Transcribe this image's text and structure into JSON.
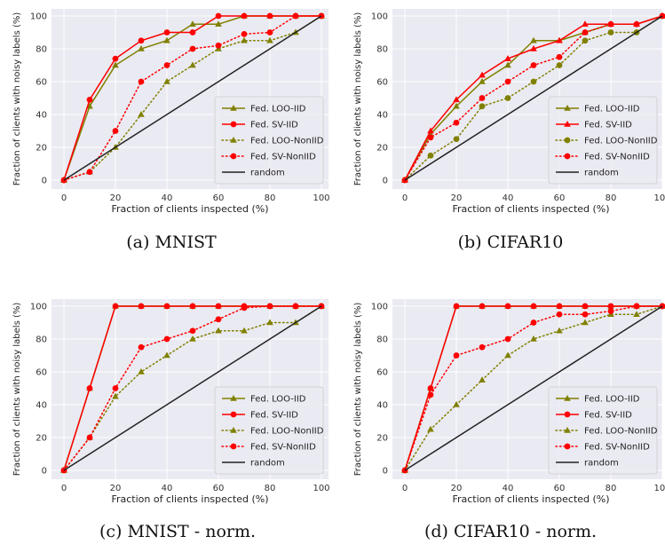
{
  "captions": [
    "(a) MNIST",
    "(b) CIFAR10",
    "(c) MNIST - norm.",
    "(d) CIFAR10 - norm."
  ],
  "chart_data": [
    {
      "type": "line",
      "xlabel": "Fraction of clients inspected (%)",
      "ylabel": "Fraction of clients with noisy labels (%)",
      "xlim": [
        0,
        100
      ],
      "ylim": [
        0,
        100
      ],
      "xticks": [
        0,
        20,
        40,
        60,
        80,
        100
      ],
      "yticks": [
        0,
        20,
        40,
        60,
        80,
        100
      ],
      "grid": true,
      "legend_position": "lower-right",
      "x": [
        0,
        10,
        20,
        30,
        40,
        50,
        60,
        70,
        80,
        90,
        100
      ],
      "series": [
        {
          "name": "Fed. LOO-IID",
          "color": "#808000",
          "style": "solid",
          "marker": "triangle",
          "values": [
            0,
            45,
            70,
            80,
            85,
            95,
            95,
            100,
            100,
            100,
            100
          ]
        },
        {
          "name": "Fed. SV-IID",
          "color": "#ff0000",
          "style": "solid",
          "marker": "circle",
          "values": [
            0,
            49,
            74,
            85,
            90,
            90,
            100,
            100,
            100,
            100,
            100
          ]
        },
        {
          "name": "Fed. LOO-NonIID",
          "color": "#808000",
          "style": "dotted",
          "marker": "triangle",
          "values": [
            0,
            5,
            20,
            40,
            60,
            70,
            80,
            85,
            85,
            90,
            100
          ]
        },
        {
          "name": "Fed. SV-NonIID",
          "color": "#ff0000",
          "style": "dotted",
          "marker": "circle",
          "values": [
            0,
            5,
            30,
            60,
            70,
            80,
            82,
            89,
            90,
            100,
            100
          ]
        },
        {
          "name": "random",
          "color": "#222222",
          "style": "solid",
          "marker": "none",
          "values": [
            0,
            10,
            20,
            30,
            40,
            50,
            60,
            70,
            80,
            90,
            100
          ]
        }
      ]
    },
    {
      "type": "line",
      "xlabel": "Fraction of clients inspected (%)",
      "ylabel": "Fraction of clients with noisy labels (%)",
      "xlim": [
        0,
        100
      ],
      "ylim": [
        0,
        100
      ],
      "xticks": [
        0,
        20,
        40,
        60,
        80,
        100
      ],
      "yticks": [
        0,
        20,
        40,
        60,
        80,
        100
      ],
      "grid": true,
      "legend_position": "lower-right",
      "x": [
        0,
        10,
        20,
        30,
        40,
        50,
        60,
        70,
        80,
        90,
        100
      ],
      "series": [
        {
          "name": "Fed. LOO-IID",
          "color": "#808000",
          "style": "solid",
          "marker": "triangle",
          "values": [
            0,
            28,
            45,
            60,
            70,
            85,
            85,
            90,
            95,
            95,
            100
          ]
        },
        {
          "name": "Fed. SV-IID",
          "color": "#ff0000",
          "style": "solid",
          "marker": "triangle",
          "values": [
            0,
            30,
            49,
            64,
            74,
            80,
            85,
            95,
            95,
            95,
            100
          ]
        },
        {
          "name": "Fed. LOO-NonIID",
          "color": "#808000",
          "style": "dotted",
          "marker": "circle",
          "values": [
            0,
            15,
            25,
            45,
            50,
            60,
            70,
            85,
            90,
            90,
            100
          ]
        },
        {
          "name": "Fed. SV-NonIID",
          "color": "#ff0000",
          "style": "dotted",
          "marker": "circle",
          "values": [
            0,
            26,
            35,
            50,
            60,
            70,
            75,
            90,
            95,
            95,
            100
          ]
        },
        {
          "name": "random",
          "color": "#222222",
          "style": "solid",
          "marker": "none",
          "values": [
            0,
            10,
            20,
            30,
            40,
            50,
            60,
            70,
            80,
            90,
            100
          ]
        }
      ]
    },
    {
      "type": "line",
      "xlabel": "Fraction of clients inspected (%)",
      "ylabel": "Fraction of clients with noisy labels (%)",
      "xlim": [
        0,
        100
      ],
      "ylim": [
        0,
        100
      ],
      "xticks": [
        0,
        20,
        40,
        60,
        80,
        100
      ],
      "yticks": [
        0,
        20,
        40,
        60,
        80,
        100
      ],
      "grid": true,
      "legend_position": "lower-right",
      "x": [
        0,
        10,
        20,
        30,
        40,
        50,
        60,
        70,
        80,
        90,
        100
      ],
      "series": [
        {
          "name": "Fed. LOO-IID",
          "color": "#808000",
          "style": "solid",
          "marker": "triangle",
          "values": [
            0,
            50,
            100,
            100,
            100,
            100,
            100,
            100,
            100,
            100,
            100
          ]
        },
        {
          "name": "Fed. SV-IID",
          "color": "#ff0000",
          "style": "solid",
          "marker": "circle",
          "values": [
            0,
            50,
            100,
            100,
            100,
            100,
            100,
            100,
            100,
            100,
            100
          ]
        },
        {
          "name": "Fed. LOO-NonIID",
          "color": "#808000",
          "style": "dotted",
          "marker": "triangle",
          "values": [
            0,
            20,
            45,
            60,
            70,
            80,
            85,
            85,
            90,
            90,
            100
          ]
        },
        {
          "name": "Fed. SV-NonIID",
          "color": "#ff0000",
          "style": "dotted",
          "marker": "circle",
          "values": [
            0,
            20,
            50,
            75,
            80,
            85,
            92,
            99,
            100,
            100,
            100
          ]
        },
        {
          "name": "random",
          "color": "#222222",
          "style": "solid",
          "marker": "none",
          "values": [
            0,
            10,
            20,
            30,
            40,
            50,
            60,
            70,
            80,
            90,
            100
          ]
        }
      ]
    },
    {
      "type": "line",
      "xlabel": "Fraction of clients inspected (%)",
      "ylabel": "Fraction of clients with noisy labels (%)",
      "xlim": [
        0,
        100
      ],
      "ylim": [
        0,
        100
      ],
      "xticks": [
        0,
        20,
        40,
        60,
        80,
        100
      ],
      "yticks": [
        0,
        20,
        40,
        60,
        80,
        100
      ],
      "grid": true,
      "legend_position": "lower-right",
      "x": [
        0,
        10,
        20,
        30,
        40,
        50,
        60,
        70,
        80,
        90,
        100
      ],
      "series": [
        {
          "name": "Fed. LOO-IID",
          "color": "#808000",
          "style": "solid",
          "marker": "triangle",
          "values": [
            0,
            50,
            100,
            100,
            100,
            100,
            100,
            100,
            100,
            100,
            100
          ]
        },
        {
          "name": "Fed. SV-IID",
          "color": "#ff0000",
          "style": "solid",
          "marker": "circle",
          "values": [
            0,
            50,
            100,
            100,
            100,
            100,
            100,
            100,
            100,
            100,
            100
          ]
        },
        {
          "name": "Fed. LOO-NonIID",
          "color": "#808000",
          "style": "dotted",
          "marker": "triangle",
          "values": [
            0,
            25,
            40,
            55,
            70,
            80,
            85,
            90,
            95,
            95,
            100
          ]
        },
        {
          "name": "Fed. SV-NonIID",
          "color": "#ff0000",
          "style": "dotted",
          "marker": "circle",
          "values": [
            0,
            46,
            70,
            75,
            80,
            90,
            95,
            95,
            97,
            100,
            100
          ]
        },
        {
          "name": "random",
          "color": "#222222",
          "style": "solid",
          "marker": "none",
          "values": [
            0,
            10,
            20,
            30,
            40,
            50,
            60,
            70,
            80,
            90,
            100
          ]
        }
      ]
    }
  ]
}
